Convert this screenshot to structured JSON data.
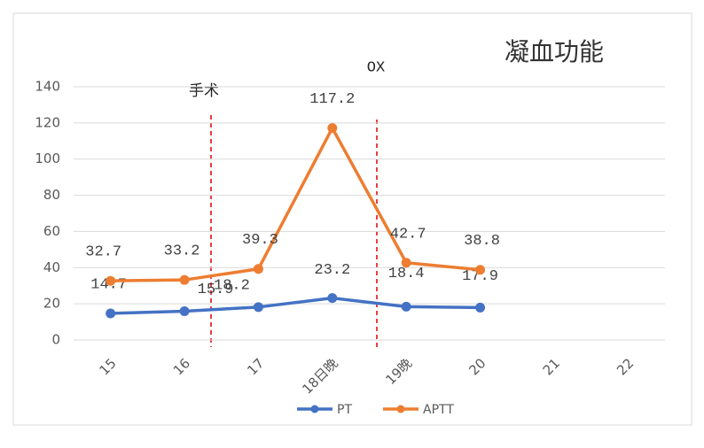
{
  "chart_data": {
    "type": "line",
    "title": "凝血功能",
    "categories": [
      "15",
      "16",
      "17",
      "18日晚",
      "19晚",
      "20",
      "21",
      "22"
    ],
    "series": [
      {
        "name": "PT",
        "color": "#4472c4",
        "values": [
          14.7,
          15.9,
          18.2,
          23.2,
          18.4,
          17.9,
          null,
          null
        ]
      },
      {
        "name": "APTT",
        "color": "#ed7d31",
        "values": [
          32.7,
          33.2,
          39.3,
          117.2,
          42.7,
          38.8,
          null,
          null
        ]
      }
    ],
    "ylim": [
      0,
      140
    ],
    "yticks": [
      0,
      20,
      40,
      60,
      80,
      100,
      120,
      140
    ],
    "grid": true,
    "annotations": [
      {
        "text": "手术"
      },
      {
        "text": "OX"
      }
    ],
    "legend": "bottom"
  }
}
